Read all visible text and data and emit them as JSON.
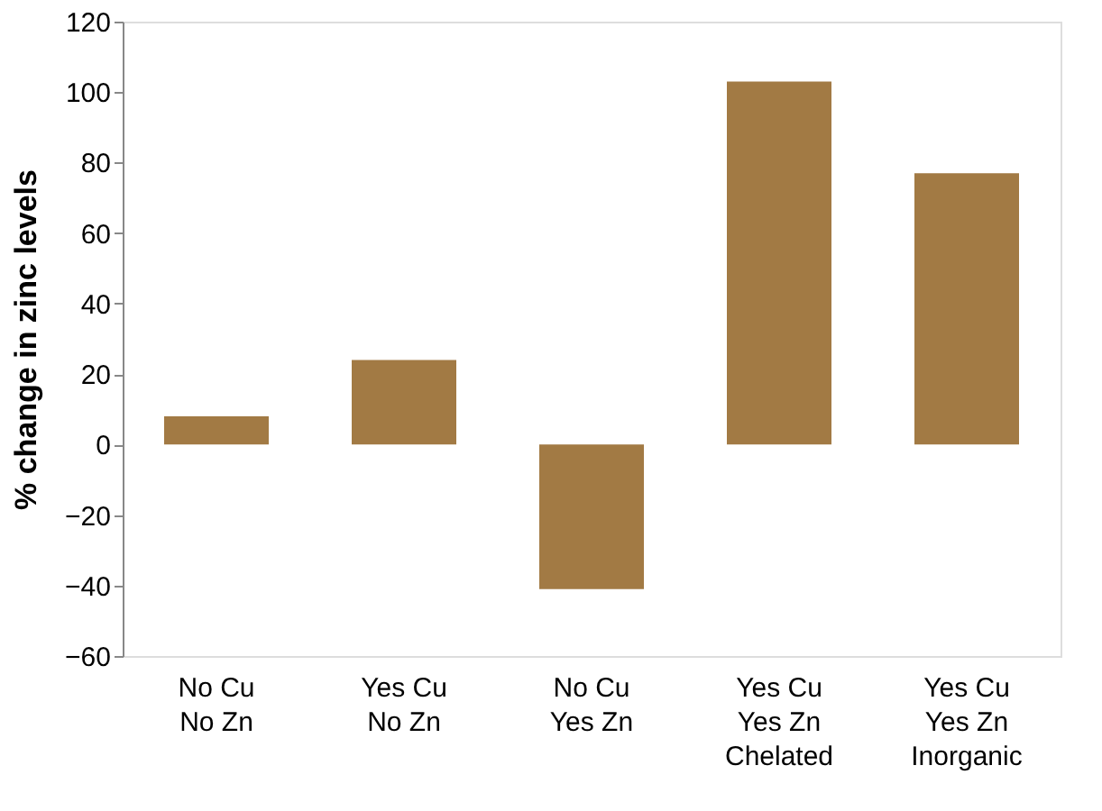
{
  "chart_data": {
    "type": "bar",
    "ylabel": "% change in zinc levels",
    "categories": [
      "No Cu\nNo Zn",
      "Yes Cu\nNo Zn",
      "No Cu\nYes Zn",
      "Yes Cu\nYes Zn\nChelated",
      "Yes Cu\nYes Zn\nInorganic"
    ],
    "values": [
      8,
      24,
      -41,
      103,
      77
    ],
    "color": "#a27a44",
    "ylim": [
      -60,
      120
    ],
    "yticks": [
      -60,
      -40,
      -20,
      0,
      20,
      40,
      60,
      80,
      100,
      120
    ],
    "grid": false
  }
}
